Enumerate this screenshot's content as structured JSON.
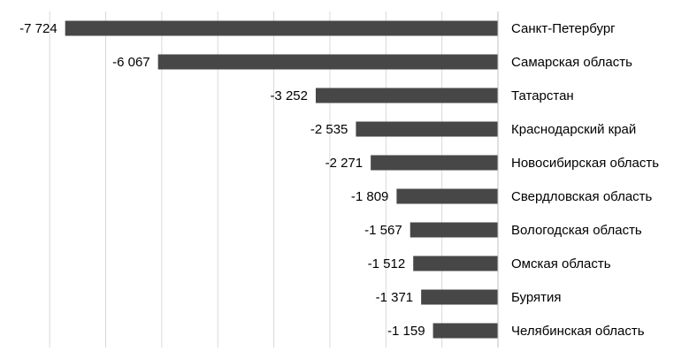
{
  "chart_data": {
    "type": "bar",
    "orientation": "horizontal",
    "categories": [
      "Санкт-Петербург",
      "Самарская область",
      "Татарстан",
      "Краснодарский край",
      "Новосибирская область",
      "Свердловская область",
      "Вологодская область",
      "Омская область",
      "Бурятия",
      "Челябинская область"
    ],
    "values": [
      -7724,
      -6067,
      -3252,
      -2535,
      -2271,
      -1809,
      -1567,
      -1512,
      -1371,
      -1159
    ],
    "value_labels": [
      "-7 724",
      "-6 067",
      "-3 252",
      "-2 535",
      "-2 271",
      "-1 809",
      "-1 567",
      "-1 512",
      "-1 371",
      "-1 159"
    ],
    "title": "",
    "xlabel": "",
    "ylabel": "",
    "xlim": [
      -8000,
      0
    ],
    "grid_step": 1000,
    "grid": true,
    "legend": "none",
    "bar_color": "#474747",
    "grid_color": "#d9d9d9"
  }
}
